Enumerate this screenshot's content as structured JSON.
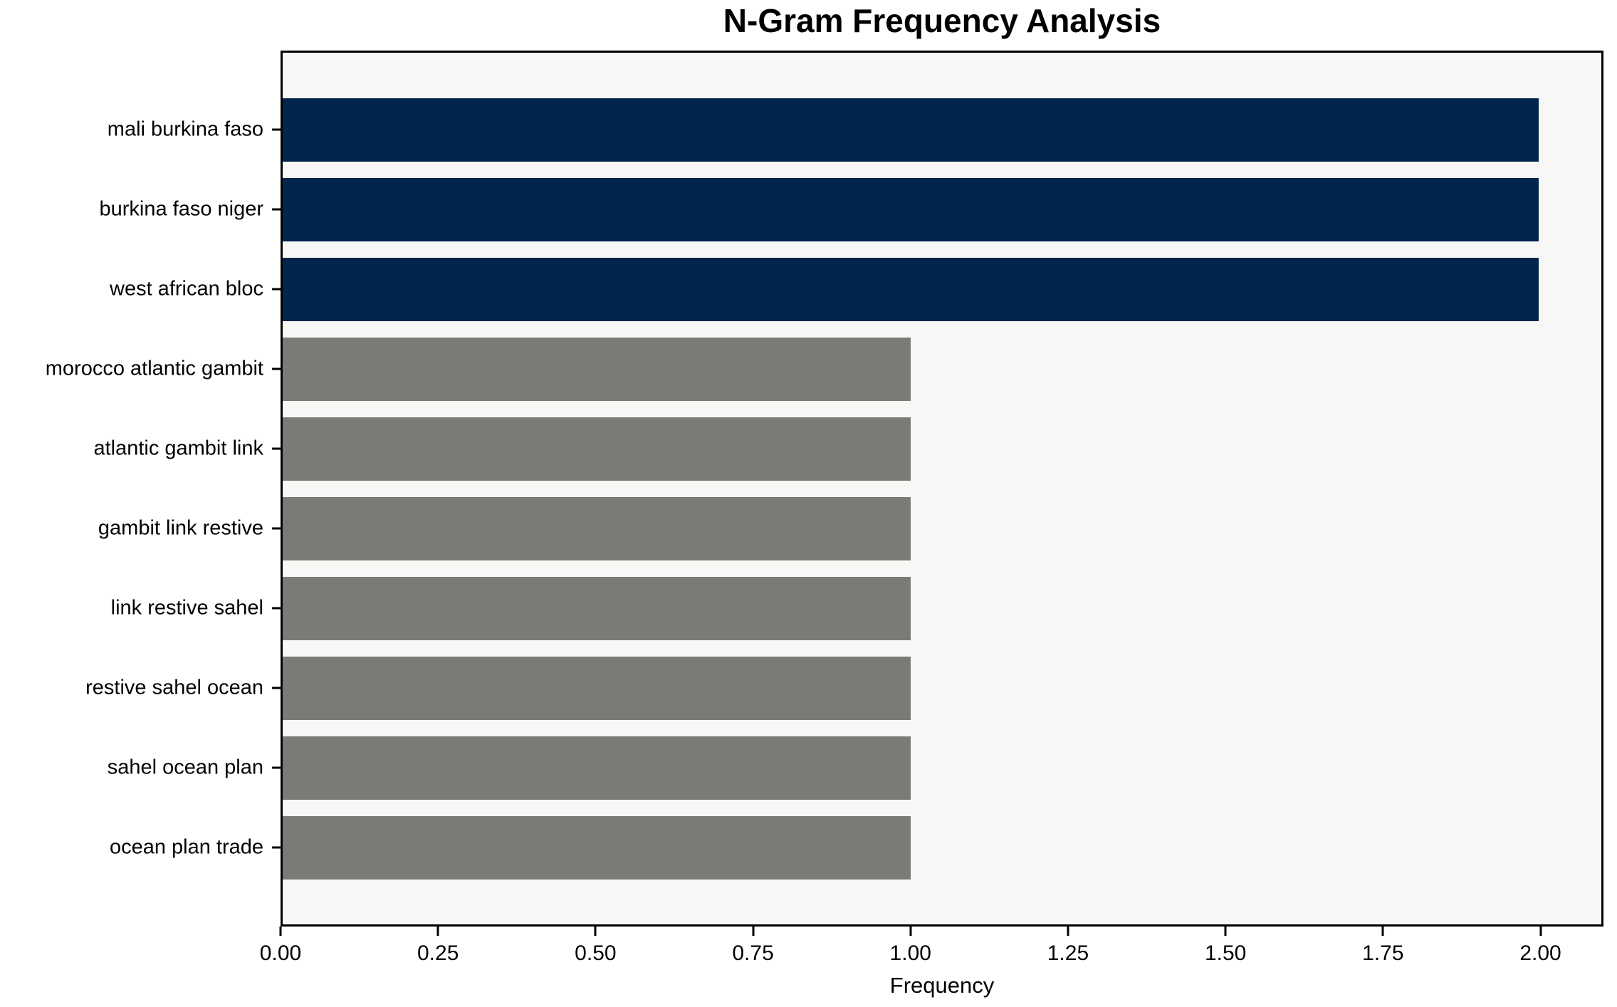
{
  "chart_data": {
    "type": "bar",
    "orientation": "horizontal",
    "title": "N-Gram Frequency Analysis",
    "xlabel": "Frequency",
    "ylabel": "",
    "categories": [
      "mali burkina faso",
      "burkina faso niger",
      "west african bloc",
      "morocco atlantic gambit",
      "atlantic gambit link",
      "gambit link restive",
      "link restive sahel",
      "restive sahel ocean",
      "sahel ocean plan",
      "ocean plan trade"
    ],
    "values": [
      2,
      2,
      2,
      1,
      1,
      1,
      1,
      1,
      1,
      1
    ],
    "bar_colors": [
      "#02254d",
      "#02254d",
      "#02254d",
      "#7b7b76",
      "#7b7b76",
      "#7b7b76",
      "#7b7b76",
      "#7b7b76",
      "#7b7b76",
      "#7b7b76"
    ],
    "xlim": [
      0,
      2.1
    ],
    "xticks": [
      {
        "value": 0.0,
        "label": "0.00"
      },
      {
        "value": 0.25,
        "label": "0.25"
      },
      {
        "value": 0.5,
        "label": "0.50"
      },
      {
        "value": 0.75,
        "label": "0.75"
      },
      {
        "value": 1.0,
        "label": "1.00"
      },
      {
        "value": 1.25,
        "label": "1.25"
      },
      {
        "value": 1.5,
        "label": "1.50"
      },
      {
        "value": 1.75,
        "label": "1.75"
      },
      {
        "value": 2.0,
        "label": "2.00"
      }
    ],
    "grid": false,
    "legend": "none",
    "colors": {
      "highlight_bar": "#02254d",
      "default_bar": "#7b7b76",
      "plot_background": "#f7f7f5",
      "figure_background": "#ffffff",
      "spine": "#000000",
      "text": "#000000"
    }
  }
}
